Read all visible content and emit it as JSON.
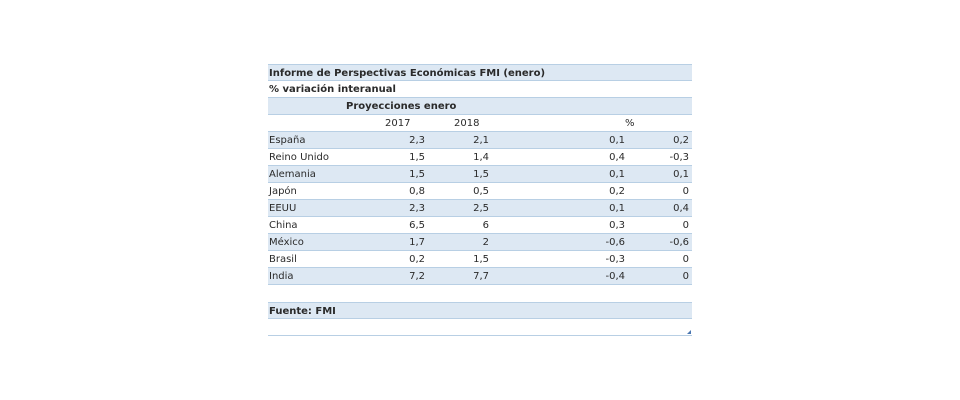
{
  "table": {
    "title": "Informe de Perspectivas Económicas FMI (enero)",
    "subtitle": "% variación interanual",
    "group_header": "Proyecciones enero",
    "columns": [
      "2017",
      "2018",
      "%"
    ],
    "rows": [
      {
        "country": "España",
        "y2017": "2,3",
        "y2018": "2,1",
        "d1": "0,1",
        "d2": "0,2"
      },
      {
        "country": "Reino Unido",
        "y2017": "1,5",
        "y2018": "1,4",
        "d1": "0,4",
        "d2": "-0,3"
      },
      {
        "country": "Alemania",
        "y2017": "1,5",
        "y2018": "1,5",
        "d1": "0,1",
        "d2": "0,1"
      },
      {
        "country": "Japón",
        "y2017": "0,8",
        "y2018": "0,5",
        "d1": "0,2",
        "d2": "0"
      },
      {
        "country": "EEUU",
        "y2017": "2,3",
        "y2018": "2,5",
        "d1": "0,1",
        "d2": "0,4"
      },
      {
        "country": "China",
        "y2017": "6,5",
        "y2018": "6",
        "d1": "0,3",
        "d2": "0"
      },
      {
        "country": "México",
        "y2017": "1,7",
        "y2018": "2",
        "d1": "-0,6",
        "d2": "-0,6"
      },
      {
        "country": "Brasil",
        "y2017": "0,2",
        "y2018": "1,5",
        "d1": "-0,3",
        "d2": "0"
      },
      {
        "country": "India",
        "y2017": "7,2",
        "y2018": "7,7",
        "d1": "-0,4",
        "d2": "0"
      }
    ],
    "source": "Fuente: FMI",
    "colors": {
      "shade": "#dde8f3",
      "grid": "#b8cfe4"
    }
  },
  "chart_data": {
    "type": "table",
    "title": "Informe de Perspectivas Económicas FMI (enero)",
    "subtitle": "% variación interanual",
    "column_headers": [
      "2017",
      "2018",
      "%",
      ""
    ],
    "group_header": "Proyecciones enero",
    "categories": [
      "España",
      "Reino Unido",
      "Alemania",
      "Japón",
      "EEUU",
      "China",
      "México",
      "Brasil",
      "India"
    ],
    "series": [
      {
        "name": "2017",
        "values": [
          2.3,
          1.5,
          1.5,
          0.8,
          2.3,
          6.5,
          1.7,
          0.2,
          7.2
        ]
      },
      {
        "name": "2018",
        "values": [
          2.1,
          1.4,
          1.5,
          0.5,
          2.5,
          6,
          2,
          1.5,
          7.7
        ]
      },
      {
        "name": "%",
        "values": [
          0.1,
          0.4,
          0.1,
          0.2,
          0.1,
          0.3,
          -0.6,
          -0.3,
          -0.4
        ]
      },
      {
        "values": [
          0.2,
          -0.3,
          0.1,
          0,
          0.4,
          0,
          -0.6,
          0,
          0
        ]
      }
    ],
    "source": "Fuente: FMI"
  }
}
